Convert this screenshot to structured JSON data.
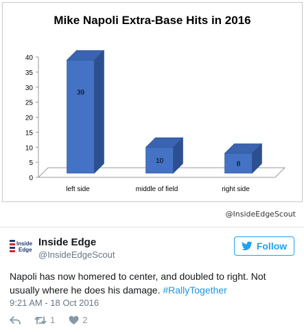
{
  "media": {
    "credit": "@InsideEdgeScout"
  },
  "chart_data": {
    "type": "bar",
    "title": "Mike Napoli Extra-Base Hits in 2016",
    "categories": [
      "left side",
      "middle of field",
      "right side"
    ],
    "values": [
      39,
      10,
      8
    ],
    "ylim": [
      0,
      40
    ],
    "yticks": [
      "0",
      "5",
      "10",
      "15",
      "20",
      "25",
      "30",
      "35",
      "40"
    ],
    "grid": false,
    "style": "3d",
    "bar_color": "#4472c4"
  },
  "tweet": {
    "author_name": "Inside Edge",
    "author_handle": "@InsideEdgeScout",
    "logo_text_top": "Inside",
    "logo_text_bottom": "Edge",
    "follow_label": "Follow",
    "text": "Napoli has now homered to center, and doubled to right. Not usually where he does his damage.",
    "hashtag": "#RallyTogether",
    "timestamp": "9:21 AM - 18 Oct 2016",
    "retweets": "1",
    "likes": "2"
  },
  "colors": {
    "twitter_blue": "#1da1f2",
    "hashtag_blue": "#1b95e0",
    "muted": "#657786",
    "logo_red": "#d8232a",
    "logo_navy": "#1f3a6e"
  },
  "icons": [
    "reply-icon",
    "retweet-icon",
    "heart-icon",
    "twitter-bird-icon"
  ]
}
